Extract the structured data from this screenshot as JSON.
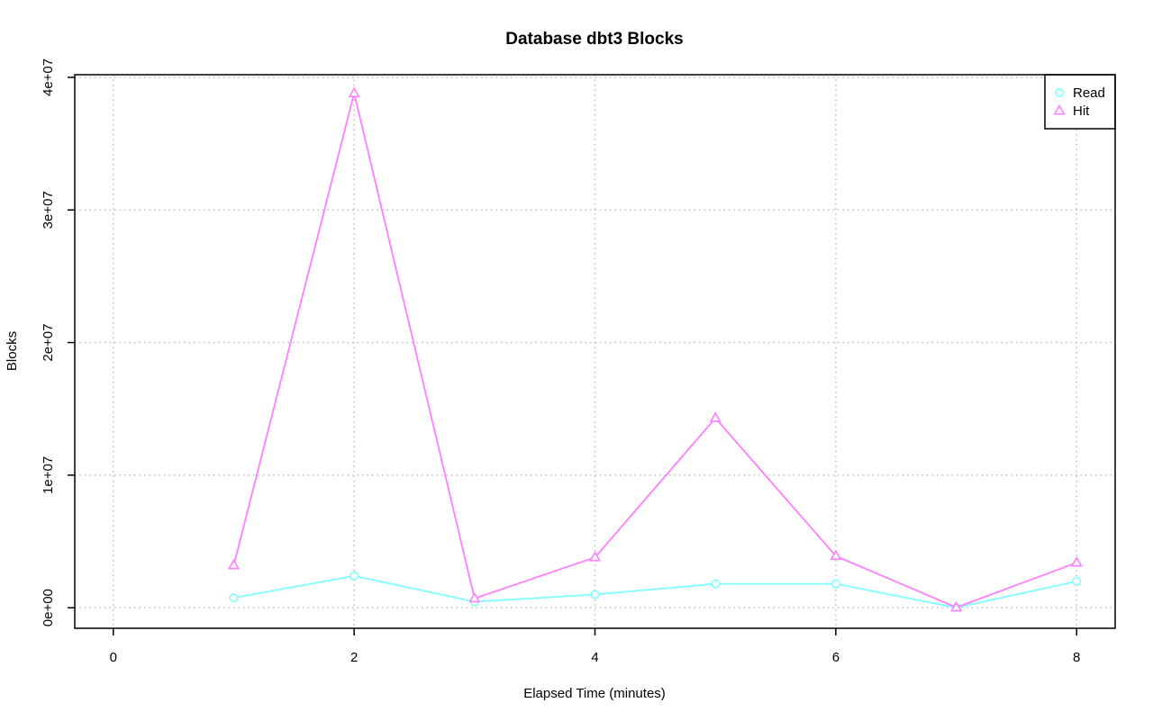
{
  "chart_data": {
    "type": "line",
    "title": "Database dbt3 Blocks",
    "xlabel": "Elapsed Time (minutes)",
    "ylabel": "Blocks",
    "xlim": [
      -0.32,
      8.32
    ],
    "ylim": [
      -1550000,
      40200000
    ],
    "x_ticks": [
      0,
      2,
      4,
      6,
      8
    ],
    "x_tick_labels": [
      "0",
      "2",
      "4",
      "6",
      "8"
    ],
    "y_ticks": [
      0,
      10000000,
      20000000,
      30000000,
      40000000
    ],
    "y_tick_labels": [
      "0e+00",
      "1e+07",
      "2e+07",
      "3e+07",
      "4e+07"
    ],
    "grid": true,
    "legend_position": "top-right",
    "x": [
      1,
      2,
      3,
      4,
      5,
      6,
      7,
      8
    ],
    "series": [
      {
        "name": "Read",
        "color": "#7fffff",
        "marker": "circle",
        "values": [
          750000,
          2400000,
          450000,
          1000000,
          1800000,
          1800000,
          10000,
          2000000
        ]
      },
      {
        "name": "Hit",
        "color": "#ff7fff",
        "marker": "triangle",
        "values": [
          3200000,
          38800000,
          700000,
          3800000,
          14300000,
          3900000,
          20000,
          3400000
        ]
      }
    ]
  }
}
